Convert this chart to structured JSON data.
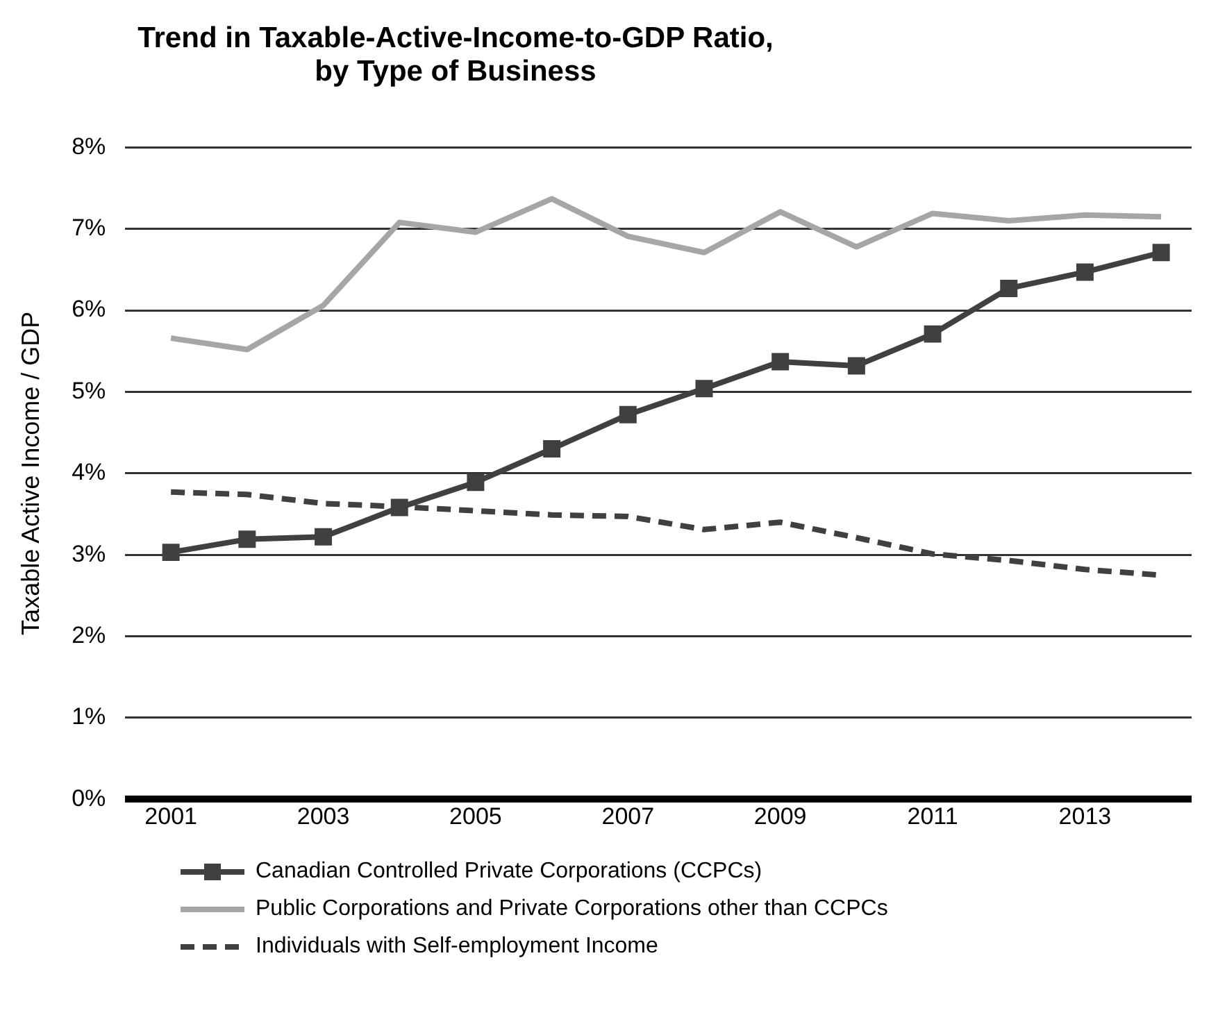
{
  "chart_data": {
    "type": "line",
    "title": "Trend in Taxable-Active-Income-to-GDP Ratio, by Type of Business",
    "ylabel": "Taxable Active Income / GDP",
    "x": [
      2001,
      2002,
      2003,
      2004,
      2005,
      2006,
      2007,
      2008,
      2009,
      2010,
      2011,
      2012,
      2013,
      2014
    ],
    "xlim": [
      2000.4,
      2014.4
    ],
    "xticks": [
      2001,
      2003,
      2005,
      2007,
      2009,
      2011,
      2013
    ],
    "ylim": [
      0,
      8
    ],
    "yticks": [
      {
        "value": 0,
        "label": "0%"
      },
      {
        "value": 1,
        "label": "1%"
      },
      {
        "value": 2,
        "label": "2%"
      },
      {
        "value": 3,
        "label": "3%"
      },
      {
        "value": 4,
        "label": "4%"
      },
      {
        "value": 5,
        "label": "5%"
      },
      {
        "value": 6,
        "label": "6%"
      },
      {
        "value": 7,
        "label": "7%"
      },
      {
        "value": 8,
        "label": "8%"
      }
    ],
    "grid": "y",
    "legend": "bottom",
    "series": [
      {
        "name": "Canadian Controlled Private Corporations (CCPCs)",
        "color": "#404040",
        "marker": "square",
        "line_style": "solid",
        "values": [
          3.03,
          3.19,
          3.22,
          3.58,
          3.89,
          4.3,
          4.72,
          5.04,
          5.37,
          5.32,
          5.71,
          6.27,
          6.47,
          6.71
        ]
      },
      {
        "name": "Public Corporations and Private Corporations other than CCPCs",
        "color": "#a6a6a6",
        "marker": "none",
        "line_style": "solid",
        "values": [
          5.66,
          5.52,
          6.06,
          7.08,
          6.96,
          7.37,
          6.91,
          6.71,
          7.21,
          6.78,
          7.19,
          7.1,
          7.17,
          7.15
        ]
      },
      {
        "name": "Individuals with Self-employment Income",
        "color": "#404040",
        "marker": "none",
        "line_style": "dashed",
        "values": [
          3.77,
          3.74,
          3.63,
          3.59,
          3.54,
          3.49,
          3.47,
          3.31,
          3.4,
          3.21,
          3.01,
          2.93,
          2.82,
          2.75
        ]
      }
    ]
  }
}
